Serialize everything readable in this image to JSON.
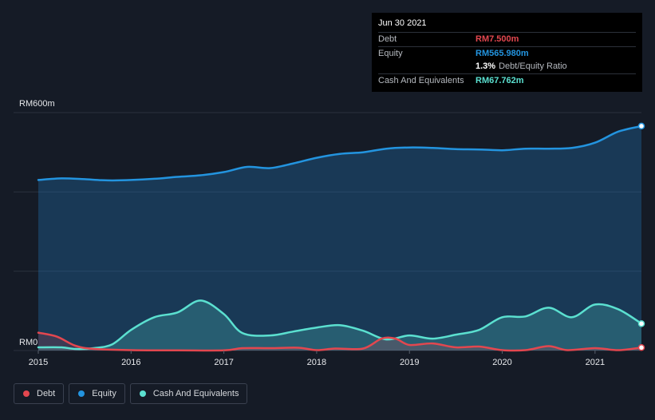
{
  "chart_data": {
    "type": "area",
    "x_ticks": [
      "2015",
      "2016",
      "2017",
      "2018",
      "2019",
      "2020",
      "2021"
    ],
    "y_labels": {
      "top": "RM600m",
      "bottom": "RM0"
    },
    "ylim": [
      0,
      600
    ],
    "grid": true,
    "legend_placement": "bottom-left",
    "series": [
      {
        "name": "Debt",
        "color": "#e3474f",
        "points": [
          [
            2015.0,
            45
          ],
          [
            2015.2,
            35
          ],
          [
            2015.4,
            12
          ],
          [
            2015.6,
            4
          ],
          [
            2016.0,
            1
          ],
          [
            2016.5,
            0.5
          ],
          [
            2017.0,
            0.5
          ],
          [
            2017.2,
            6
          ],
          [
            2017.5,
            6
          ],
          [
            2017.8,
            7
          ],
          [
            2018.0,
            1
          ],
          [
            2018.2,
            5
          ],
          [
            2018.5,
            5
          ],
          [
            2018.7,
            30
          ],
          [
            2018.85,
            30
          ],
          [
            2019.0,
            14
          ],
          [
            2019.25,
            18
          ],
          [
            2019.5,
            8
          ],
          [
            2019.75,
            10
          ],
          [
            2020.0,
            1
          ],
          [
            2020.25,
            1
          ],
          [
            2020.5,
            11
          ],
          [
            2020.7,
            1
          ],
          [
            2021.0,
            6
          ],
          [
            2021.25,
            1
          ],
          [
            2021.5,
            7.5
          ]
        ]
      },
      {
        "name": "Equity",
        "color": "#2394df",
        "points": [
          [
            2015.0,
            430
          ],
          [
            2015.25,
            434
          ],
          [
            2015.5,
            432
          ],
          [
            2015.75,
            429
          ],
          [
            2016.0,
            430
          ],
          [
            2016.25,
            433
          ],
          [
            2016.5,
            438
          ],
          [
            2016.75,
            442
          ],
          [
            2017.0,
            450
          ],
          [
            2017.25,
            463
          ],
          [
            2017.5,
            460
          ],
          [
            2017.75,
            472
          ],
          [
            2018.0,
            486
          ],
          [
            2018.25,
            496
          ],
          [
            2018.5,
            500
          ],
          [
            2018.75,
            509
          ],
          [
            2019.0,
            512
          ],
          [
            2019.25,
            511
          ],
          [
            2019.5,
            508
          ],
          [
            2019.75,
            507
          ],
          [
            2020.0,
            505
          ],
          [
            2020.25,
            509
          ],
          [
            2020.5,
            509
          ],
          [
            2020.75,
            511
          ],
          [
            2021.0,
            524
          ],
          [
            2021.25,
            552
          ],
          [
            2021.5,
            565.98
          ]
        ]
      },
      {
        "name": "Cash And Equivalents",
        "color": "#5be0d0",
        "points": [
          [
            2015.0,
            8
          ],
          [
            2015.25,
            8
          ],
          [
            2015.4,
            4
          ],
          [
            2015.6,
            6
          ],
          [
            2015.8,
            16
          ],
          [
            2016.0,
            52
          ],
          [
            2016.25,
            84
          ],
          [
            2016.5,
            96
          ],
          [
            2016.75,
            126
          ],
          [
            2017.0,
            92
          ],
          [
            2017.2,
            44
          ],
          [
            2017.5,
            38
          ],
          [
            2017.75,
            48
          ],
          [
            2018.0,
            58
          ],
          [
            2018.25,
            64
          ],
          [
            2018.5,
            50
          ],
          [
            2018.75,
            28
          ],
          [
            2019.0,
            38
          ],
          [
            2019.25,
            30
          ],
          [
            2019.5,
            40
          ],
          [
            2019.75,
            52
          ],
          [
            2020.0,
            84
          ],
          [
            2020.25,
            86
          ],
          [
            2020.5,
            108
          ],
          [
            2020.75,
            84
          ],
          [
            2021.0,
            116
          ],
          [
            2021.25,
            104
          ],
          [
            2021.5,
            67.762
          ]
        ]
      }
    ]
  },
  "tooltip": {
    "date": "Jun 30 2021",
    "debt_label": "Debt",
    "debt_value": "RM7.500m",
    "equity_label": "Equity",
    "equity_value": "RM565.980m",
    "ratio_value": "1.3%",
    "ratio_label": "Debt/Equity Ratio",
    "cash_label": "Cash And Equivalents",
    "cash_value": "RM67.762m"
  },
  "legend": [
    {
      "label": "Debt",
      "color": "#e3474f"
    },
    {
      "label": "Equity",
      "color": "#2394df"
    },
    {
      "label": "Cash And Equivalents",
      "color": "#5be0d0"
    }
  ]
}
